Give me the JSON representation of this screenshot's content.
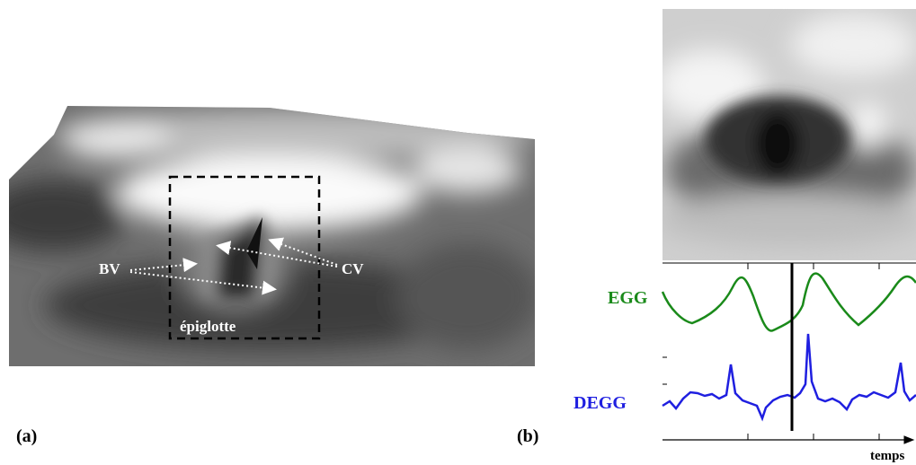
{
  "panel_a": {
    "label": "(a)",
    "annotations": {
      "bv": "BV",
      "cv": "CV",
      "epiglottis": "épiglotte"
    }
  },
  "panel_b": {
    "label": "(b)",
    "signals": [
      {
        "name": "EGG",
        "color": "#1a8a1a"
      },
      {
        "name": "DEGG",
        "color": "#1f1fe0"
      }
    ],
    "x_axis_label": "temps"
  }
}
